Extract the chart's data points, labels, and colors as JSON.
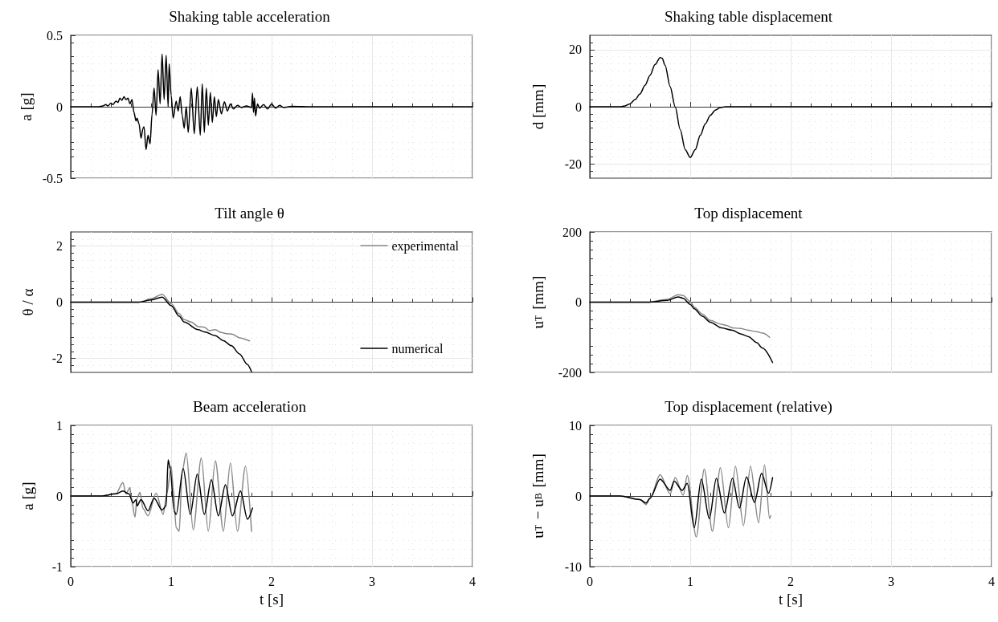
{
  "chart_data": [
    {
      "type": "line",
      "title": "Shaking table acceleration",
      "ylabel": "a [g]",
      "xlim": [
        0,
        4
      ],
      "xticks": [
        0,
        1,
        2,
        3,
        4
      ],
      "ylim": [
        -0.5,
        0.5
      ],
      "yticks": [
        -0.5,
        0,
        0.5
      ],
      "grid": true,
      "tick_labels": "y",
      "series": [
        {
          "color": "#000000",
          "x": [
            0,
            0.28,
            0.32,
            0.35,
            0.37,
            0.4,
            0.42,
            0.45,
            0.47,
            0.49,
            0.51,
            0.53,
            0.55,
            0.57,
            0.59,
            0.61,
            0.63,
            0.65,
            0.66,
            0.68,
            0.7,
            0.72,
            0.73,
            0.75,
            0.77,
            0.79,
            0.81,
            0.83,
            0.85,
            0.87,
            0.89,
            0.91,
            0.93,
            0.95,
            0.97,
            0.98,
            1.0,
            1.02,
            1.05,
            1.07,
            1.09,
            1.11,
            1.13,
            1.15,
            1.17,
            1.2,
            1.23,
            1.26,
            1.29,
            1.31,
            1.33,
            1.35,
            1.37,
            1.39,
            1.41,
            1.43,
            1.45,
            1.47,
            1.5,
            1.53,
            1.56,
            1.59,
            1.62,
            1.66,
            1.7,
            1.75,
            1.8,
            1.81,
            1.82,
            1.83,
            1.84,
            1.86,
            1.88,
            1.92,
            1.96,
            2.0,
            2.04,
            2.08,
            2.12,
            2.2,
            2.4,
            4
          ],
          "values": [
            0,
            0,
            0.005,
            0.015,
            0.005,
            0.025,
            0.015,
            0.04,
            0.03,
            0.06,
            0.045,
            0.07,
            0.05,
            0.06,
            0.02,
            0.05,
            -0.04,
            -0.1,
            -0.08,
            -0.12,
            -0.22,
            -0.15,
            -0.14,
            -0.3,
            -0.2,
            -0.26,
            -0.05,
            0.13,
            -0.06,
            0.26,
            0.02,
            0.37,
            0.05,
            0.36,
            0.0,
            0.3,
            0.08,
            -0.08,
            0.04,
            -0.03,
            0.07,
            -0.06,
            -0.15,
            0.0,
            -0.18,
            0.13,
            -0.19,
            0.14,
            -0.2,
            0.16,
            -0.18,
            0.13,
            -0.13,
            0.1,
            -0.11,
            0.07,
            -0.07,
            0.05,
            -0.05,
            0.035,
            -0.03,
            0.02,
            -0.015,
            0.01,
            -0.005,
            0.005,
            -0.005,
            0.095,
            -0.04,
            0.06,
            -0.065,
            0.02,
            -0.01,
            0.015,
            -0.015,
            0.02,
            -0.01,
            0.01,
            -0.005,
            0.003,
            0,
            0
          ]
        }
      ]
    },
    {
      "type": "line",
      "title": "Shaking table displacement",
      "ylabel": "d [mm]",
      "xlim": [
        0,
        4
      ],
      "xticks": [
        0,
        1,
        2,
        3,
        4
      ],
      "ylim": [
        -25,
        25
      ],
      "yticks": [
        -20,
        0,
        20
      ],
      "grid": true,
      "tick_labels": "y",
      "series": [
        {
          "color": "#000000",
          "x": [
            0,
            0.3,
            0.35,
            0.4,
            0.45,
            0.5,
            0.55,
            0.6,
            0.65,
            0.7,
            0.72,
            0.75,
            0.8,
            0.85,
            0.9,
            0.95,
            1.0,
            1.05,
            1.1,
            1.15,
            1.2,
            1.25,
            1.3,
            1.35,
            4
          ],
          "values": [
            0,
            0,
            0.3,
            1,
            2.5,
            4.5,
            7.5,
            11,
            14.8,
            17.2,
            17,
            14.5,
            7,
            0,
            -8,
            -15,
            -17.8,
            -15,
            -10,
            -6,
            -3,
            -1.2,
            -0.3,
            0,
            0
          ]
        }
      ]
    },
    {
      "type": "line",
      "title": "Tilt angle θ",
      "ylabel": "θ / α",
      "xlim": [
        0,
        4
      ],
      "xticks": [
        0,
        1,
        2,
        3,
        4
      ],
      "ylim": [
        -2.5,
        2.5
      ],
      "yticks": [
        -2,
        0,
        2
      ],
      "grid": true,
      "tick_labels": "y",
      "legend": "right",
      "series": [
        {
          "name": "experimental",
          "color": "#888888",
          "x": [
            0,
            0.68,
            0.8,
            0.91,
            1.0,
            1.08,
            1.13,
            1.2,
            1.27,
            1.33,
            1.38,
            1.44,
            1.5,
            1.55,
            1.61,
            1.68,
            1.78
          ],
          "values": [
            0,
            0,
            0.12,
            0.28,
            -0.05,
            -0.41,
            -0.62,
            -0.71,
            -0.87,
            -0.89,
            -1.01,
            -0.98,
            -1.08,
            -1.12,
            -1.14,
            -1.27,
            -1.38
          ]
        },
        {
          "name": "numerical",
          "color": "#000000",
          "x": [
            0,
            0.68,
            0.8,
            0.91,
            1.0,
            1.08,
            1.13,
            1.27,
            1.33,
            1.44,
            1.52,
            1.6,
            1.68,
            1.76,
            1.8
          ],
          "values": [
            0,
            0,
            0.08,
            0.18,
            -0.12,
            -0.5,
            -0.71,
            -0.98,
            -1.06,
            -1.19,
            -1.37,
            -1.55,
            -1.84,
            -2.22,
            -2.48
          ]
        }
      ]
    },
    {
      "type": "line",
      "title": "Top displacement",
      "ylabel": "u$_{T}$ [mm]",
      "xlim": [
        0,
        4
      ],
      "xticks": [
        0,
        1,
        2,
        3,
        4
      ],
      "ylim": [
        -200,
        200
      ],
      "yticks": [
        -200,
        0,
        200
      ],
      "grid": true,
      "tick_labels": "y",
      "series": [
        {
          "color": "#888888",
          "x": [
            0,
            0.58,
            0.77,
            0.88,
            0.93,
            1.0,
            1.04,
            1.12,
            1.2,
            1.31,
            1.36,
            1.42,
            1.5,
            1.58,
            1.66,
            1.72,
            1.79
          ],
          "values": [
            0,
            0,
            8,
            21,
            19,
            2,
            -14,
            -34,
            -52,
            -63,
            -66,
            -73,
            -75,
            -80,
            -84,
            -88,
            -100
          ]
        },
        {
          "color": "#000000",
          "x": [
            0,
            0.58,
            0.77,
            0.88,
            0.93,
            1.0,
            1.04,
            1.12,
            1.2,
            1.31,
            1.42,
            1.5,
            1.58,
            1.66,
            1.72,
            1.82
          ],
          "values": [
            0,
            0,
            5,
            15,
            11,
            -6,
            -19,
            -40,
            -57,
            -73,
            -80,
            -90,
            -98,
            -115,
            -131,
            -172
          ]
        }
      ]
    },
    {
      "type": "line",
      "title": "Beam acceleration",
      "xlabel": "t [s]",
      "ylabel": "a [g]",
      "xlim": [
        0,
        4
      ],
      "xticks": [
        0,
        1,
        2,
        3,
        4
      ],
      "ylim": [
        -1,
        1
      ],
      "yticks": [
        -1,
        0,
        1
      ],
      "grid": true,
      "series": [
        {
          "color": "#888888",
          "x": [
            0,
            0.3,
            0.45,
            0.52,
            0.55,
            0.59,
            0.6,
            0.64,
            0.66,
            0.69,
            0.72,
            0.77,
            0.85,
            0.92,
            0.96,
            1.0,
            1.02,
            1.05,
            1.08,
            1.11,
            1.15,
            1.22,
            1.3,
            1.37,
            1.44,
            1.52,
            1.59,
            1.66,
            1.74,
            1.8
          ],
          "values": [
            0,
            0,
            0.03,
            0.19,
            0.03,
            0.12,
            0,
            -0.3,
            -0.03,
            0.05,
            -0.18,
            -0.28,
            0.04,
            -0.26,
            0.05,
            0.42,
            0.12,
            -0.45,
            -0.5,
            0.35,
            0.61,
            -0.48,
            0.54,
            -0.5,
            0.5,
            -0.5,
            0.47,
            -0.5,
            0.42,
            -0.5
          ]
        },
        {
          "color": "#000000",
          "x": [
            0,
            0.3,
            0.45,
            0.52,
            0.58,
            0.62,
            0.65,
            0.66,
            0.7,
            0.77,
            0.83,
            0.91,
            0.95,
            0.97,
            0.99,
            1.03,
            1.05,
            1.12,
            1.19,
            1.26,
            1.33,
            1.4,
            1.47,
            1.54,
            1.61,
            1.69,
            1.76,
            1.81
          ],
          "values": [
            0,
            0,
            0.03,
            0.07,
            0.03,
            -0.1,
            -0.05,
            -0.14,
            -0.05,
            -0.21,
            -0.03,
            -0.2,
            -0.14,
            0.51,
            0.39,
            -0.22,
            -0.26,
            0.39,
            -0.26,
            0.31,
            -0.26,
            0.23,
            -0.28,
            0.16,
            -0.28,
            0.07,
            -0.33,
            -0.17
          ]
        }
      ]
    },
    {
      "type": "line",
      "title": "Top displacement (relative)",
      "xlabel": "t [s]",
      "ylabel": "u$_{T}$ − u$_{B}$ [mm]",
      "xlim": [
        0,
        4
      ],
      "xticks": [
        0,
        1,
        2,
        3,
        4
      ],
      "ylim": [
        -10,
        10
      ],
      "yticks": [
        -10,
        0,
        10
      ],
      "grid": true,
      "series": [
        {
          "color": "#888888",
          "x": [
            0,
            0.3,
            0.5,
            0.56,
            0.6,
            0.7,
            0.8,
            0.85,
            0.93,
            0.97,
            1.06,
            1.14,
            1.22,
            1.3,
            1.38,
            1.45,
            1.53,
            1.6,
            1.68,
            1.74,
            1.79,
            1.8
          ],
          "values": [
            0,
            0,
            -0.5,
            -1.2,
            -0.3,
            3.0,
            0.3,
            2.6,
            0.1,
            2.9,
            -5.8,
            3.8,
            -5.0,
            4.0,
            -4.5,
            4.2,
            -4.2,
            4.2,
            -3.8,
            4.4,
            -3.2,
            -2.8
          ]
        },
        {
          "color": "#000000",
          "x": [
            0,
            0.3,
            0.5,
            0.56,
            0.6,
            0.7,
            0.8,
            0.84,
            0.92,
            0.97,
            1.04,
            1.11,
            1.19,
            1.26,
            1.34,
            1.42,
            1.49,
            1.56,
            1.64,
            1.71,
            1.78,
            1.82
          ],
          "values": [
            0,
            0,
            -0.5,
            -1.0,
            -0.3,
            2.4,
            0.8,
            2.1,
            0.8,
            1.8,
            -4.5,
            2.4,
            -3.2,
            2.5,
            -2.4,
            2.5,
            -1.7,
            2.7,
            -0.9,
            3.2,
            0.4,
            2.6
          ]
        }
      ]
    }
  ]
}
